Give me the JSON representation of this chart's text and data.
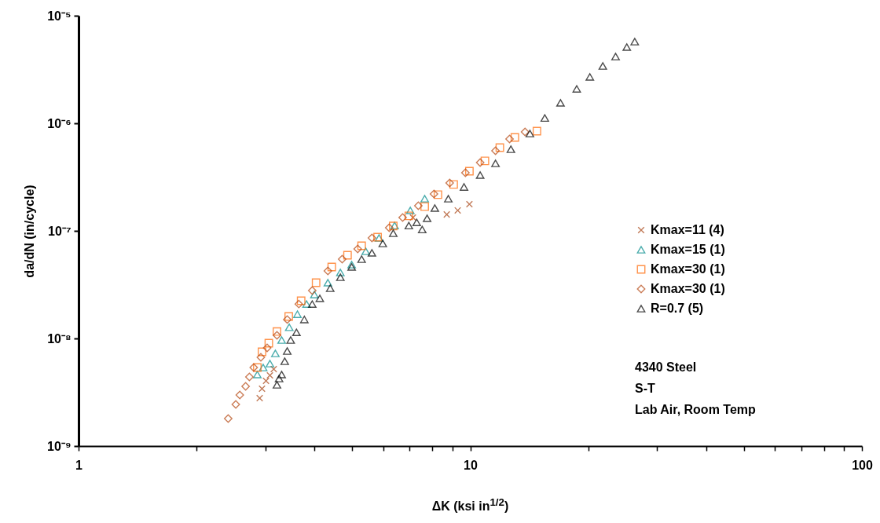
{
  "chart_data": {
    "type": "scatter",
    "xlabel": "ΔK (ksi in$^{1/2}$)",
    "ylabel": "da/dN (in/cycle)",
    "log": "xy",
    "grid": false,
    "legend": "right",
    "xlim": [
      1,
      100
    ],
    "xticks": [
      1,
      {
        "value": 2,
        "label": null
      },
      {
        "value": 3,
        "label": null
      },
      {
        "value": 4,
        "label": null
      },
      {
        "value": 5,
        "label": null
      },
      {
        "value": 6,
        "label": null
      },
      {
        "value": 7,
        "label": null
      },
      {
        "value": 8,
        "label": null
      },
      {
        "value": 9,
        "label": null
      },
      10,
      {
        "value": 20,
        "label": null
      },
      {
        "value": 30,
        "label": null
      },
      {
        "value": 40,
        "label": null
      },
      {
        "value": 50,
        "label": null
      },
      {
        "value": 60,
        "label": null
      },
      {
        "value": 70,
        "label": null
      },
      {
        "value": 80,
        "label": null
      },
      {
        "value": 90,
        "label": null
      },
      100
    ],
    "ylim": [
      1e-09,
      1e-05
    ],
    "yticks": [
      {
        "value": 1e-09,
        "label": "10⁻⁹"
      },
      {
        "value": 1e-08,
        "label": "10⁻⁸"
      },
      {
        "value": 1e-07,
        "label": "10⁻⁷"
      },
      {
        "value": 1e-06,
        "label": "10⁻⁶"
      },
      {
        "value": 1e-05,
        "label": "10⁻⁵"
      }
    ],
    "annotations": [
      "4340 Steel",
      "S-T",
      "Lab Air, Room Temp"
    ],
    "series": [
      {
        "name": "Kmax=11 (4)",
        "color": "#a84312",
        "marker": "cross",
        "x": [
          2.9,
          2.94,
          3.01,
          3.08,
          3.15,
          7.14,
          8.71,
          9.29,
          9.95
        ],
        "values": [
          2.79e-09,
          3.41e-09,
          4.03e-09,
          4.54e-09,
          5.19e-09,
          1.33e-07,
          1.42e-07,
          1.55e-07,
          1.77e-07
        ]
      },
      {
        "name": "Kmax=15 (1)",
        "color": "#008b8b",
        "marker": "triangle",
        "x": [
          2.86,
          2.96,
          3.08,
          3.18,
          3.3,
          3.45,
          3.62,
          3.82,
          4.0,
          4.33,
          4.66,
          4.98,
          5.41,
          5.85,
          6.41,
          7.03,
          7.65
        ],
        "values": [
          4.62e-09,
          5.37e-09,
          5.84e-09,
          7.27e-09,
          9.67e-09,
          1.27e-08,
          1.68e-08,
          2.09e-08,
          2.56e-08,
          3.3e-08,
          4.1e-08,
          4.85e-08,
          6.46e-08,
          8.6e-08,
          1.12e-07,
          1.55e-07,
          1.99e-07
        ]
      },
      {
        "name": "Kmax=30 (1)",
        "color": "#ff6600",
        "marker": "square",
        "x": [
          2.86,
          2.94,
          3.06,
          3.21,
          3.44,
          3.7,
          4.04,
          4.43,
          4.86,
          5.28,
          5.8,
          6.36,
          6.97,
          7.65,
          8.27,
          9.07,
          9.95,
          10.9,
          11.9,
          13.0,
          14.8
        ],
        "values": [
          5.37e-09,
          7.52e-09,
          9.04e-09,
          1.16e-08,
          1.6e-08,
          2.24e-08,
          3.3e-08,
          4.62e-08,
          5.94e-08,
          7.27e-08,
          8.74e-08,
          1.11e-07,
          1.38e-07,
          1.68e-07,
          2.17e-07,
          2.7e-07,
          3.59e-07,
          4.47e-07,
          5.94e-07,
          7.39e-07,
          8.45e-07
        ]
      },
      {
        "name": "Kmax=30 (1)",
        "color": "#b5460f",
        "marker": "diamond",
        "x": [
          2.41,
          2.52,
          2.58,
          2.67,
          2.73,
          2.8,
          2.92,
          3.03,
          3.21,
          3.41,
          3.65,
          3.95,
          4.33,
          4.71,
          5.16,
          5.61,
          6.21,
          6.72,
          7.37,
          8.08,
          8.86,
          9.72,
          10.6,
          11.6,
          12.6,
          13.8
        ],
        "values": [
          1.8e-09,
          2.44e-09,
          2.98e-09,
          3.59e-09,
          4.39e-09,
          5.37e-09,
          6.68e-09,
          8.17e-09,
          1.07e-08,
          1.5e-08,
          2.09e-08,
          2.79e-08,
          4.24e-08,
          5.46e-08,
          6.79e-08,
          8.6e-08,
          1.07e-07,
          1.33e-07,
          1.71e-07,
          2.2e-07,
          2.79e-07,
          3.47e-07,
          4.32e-07,
          5.55e-07,
          7.14e-07,
          8.31e-07
        ]
      },
      {
        "name": "R=0.7 (5)",
        "color": "#000000",
        "marker": "triangle",
        "x": [
          3.21,
          3.25,
          3.3,
          3.36,
          3.41,
          3.48,
          3.6,
          3.77,
          3.95,
          4.13,
          4.39,
          4.66,
          4.98,
          5.28,
          5.61,
          5.98,
          6.36,
          6.97,
          7.3,
          7.54,
          7.76,
          8.12,
          8.79,
          9.64,
          10.6,
          11.6,
          12.7,
          14.2,
          15.5,
          17.0,
          18.7,
          20.2,
          21.8,
          23.5,
          25.1,
          26.3
        ],
        "values": [
          3.71e-09,
          4.24e-09,
          4.62e-09,
          6.14e-09,
          7.64e-09,
          9.67e-09,
          1.14e-08,
          1.5e-08,
          2.09e-08,
          2.36e-08,
          2.93e-08,
          3.71e-08,
          4.62e-08,
          5.46e-08,
          6.25e-08,
          7.64e-08,
          9.51e-08,
          1.12e-07,
          1.2e-07,
          1.03e-07,
          1.31e-07,
          1.63e-07,
          1.99e-07,
          2.56e-07,
          3.3e-07,
          4.24e-07,
          5.74e-07,
          8.04e-07,
          1.12e-06,
          1.55e-06,
          2.09e-06,
          2.7e-06,
          3.41e-06,
          4.17e-06,
          5.11e-06,
          5.74e-06
        ]
      }
    ]
  }
}
